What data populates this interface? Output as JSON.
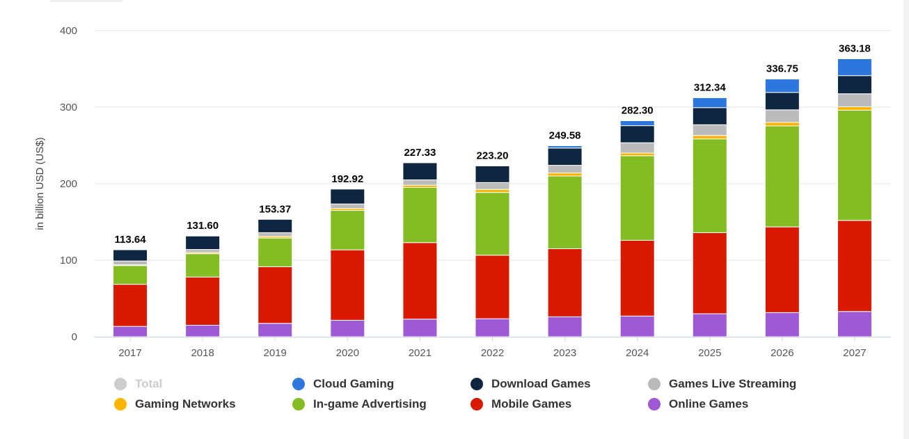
{
  "chart_data": {
    "type": "bar",
    "stacked": true,
    "ylabel": "in billion USD (US$)",
    "ylim": [
      0,
      400
    ],
    "yticks": [
      0,
      100,
      200,
      300,
      400
    ],
    "grid": true,
    "legend_position": "bottom",
    "categories": [
      "2017",
      "2018",
      "2019",
      "2020",
      "2021",
      "2022",
      "2023",
      "2024",
      "2025",
      "2026",
      "2027"
    ],
    "totals": [
      "113.64",
      "131.60",
      "153.37",
      "192.92",
      "227.33",
      "223.20",
      "249.58",
      "282.30",
      "312.34",
      "336.75",
      "363.18"
    ],
    "series": [
      {
        "name": "Online Games",
        "color": "#9d5ad4",
        "values": [
          13.5,
          15,
          17.5,
          21.5,
          23,
          23.5,
          26,
          27,
          30,
          31.5,
          33
        ]
      },
      {
        "name": "Mobile Games",
        "color": "#d81a00",
        "values": [
          55,
          63,
          74,
          92,
          100,
          83,
          89,
          99,
          106,
          112,
          119
        ]
      },
      {
        "name": "In-game Advertising",
        "color": "#84bc24",
        "values": [
          24.5,
          30.5,
          37.5,
          51.5,
          72,
          82,
          95,
          110.5,
          122.5,
          132,
          144
        ]
      },
      {
        "name": "Gaming Networks",
        "color": "#fbb400",
        "values": [
          1,
          1.5,
          2,
          2.5,
          3,
          4,
          4,
          3.5,
          4.5,
          4.5,
          4.5
        ]
      },
      {
        "name": "Games Live Streaming",
        "color": "#bbbbbb",
        "values": [
          5,
          4,
          5,
          6,
          7,
          9,
          10,
          13.5,
          14,
          16.5,
          17
        ]
      },
      {
        "name": "Download Games",
        "color": "#0f2640",
        "values": [
          14.64,
          17.6,
          17.37,
          19.42,
          22.33,
          21.7,
          22.58,
          22.3,
          22.34,
          22.75,
          23.68
        ]
      },
      {
        "name": "Cloud Gaming",
        "color": "#2b77de",
        "values": [
          0,
          0,
          0,
          0,
          0,
          0,
          3,
          6.5,
          13,
          17.5,
          22
        ]
      }
    ],
    "legend": [
      [
        {
          "name": "Total",
          "color": "#cccccc",
          "disabled": true
        },
        {
          "name": "Cloud Gaming",
          "color": "#2b77de"
        },
        {
          "name": "Download Games",
          "color": "#0f2640"
        },
        {
          "name": "Games Live Streaming",
          "color": "#bbbbbb"
        }
      ],
      [
        {
          "name": "Gaming Networks",
          "color": "#fbb400"
        },
        {
          "name": "In-game Advertising",
          "color": "#84bc24"
        },
        {
          "name": "Mobile Games",
          "color": "#d81a00"
        },
        {
          "name": "Online Games",
          "color": "#9d5ad4"
        }
      ]
    ]
  }
}
